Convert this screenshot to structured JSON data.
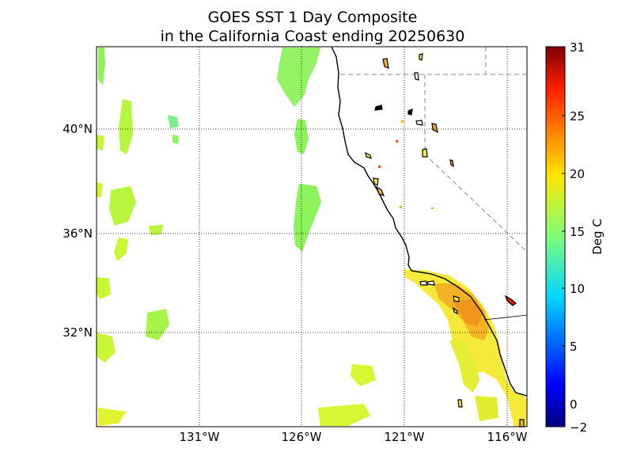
{
  "title": {
    "line1": "GOES SST 1 Day Composite",
    "line2": "in the California Coast ending 20250630"
  },
  "axes": {
    "lat_labels": [
      "40°N",
      "36°N",
      "32°N"
    ],
    "lon_labels": [
      "131°W",
      "126°W",
      "121°W",
      "116°W"
    ],
    "lat_values": [
      40,
      36,
      32
    ],
    "lon_values": [
      -131,
      -126,
      -121,
      -116
    ],
    "grid": "dotted"
  },
  "colorbar": {
    "label": "Deg C",
    "ticks": [
      "31",
      "25",
      "20",
      "15",
      "10",
      "5",
      "0",
      "−2"
    ],
    "tick_values": [
      31,
      25,
      20,
      15,
      10,
      5,
      0,
      -2
    ],
    "colormap": "jet",
    "min": -2,
    "max": 31
  },
  "colors": {
    "warm": "#f4a21e",
    "mid": "#f5e93a",
    "cool": "#8ef25c",
    "yellow_green": "#c9f735",
    "land": "#ffffff",
    "coast": "#000000"
  }
}
